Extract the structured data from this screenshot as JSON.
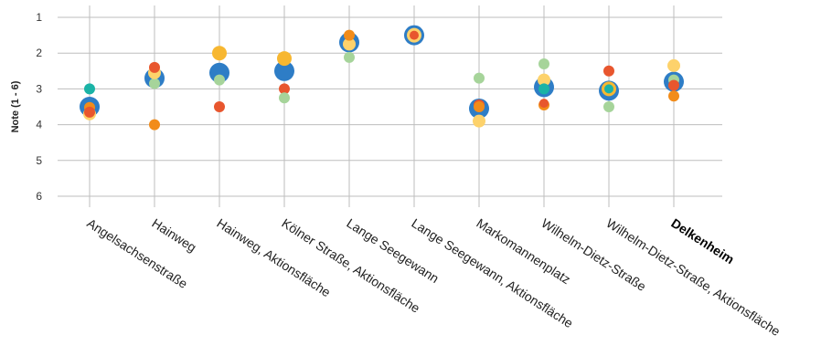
{
  "chart_data": {
    "type": "scatter",
    "ylabel": "Note (1 - 6)",
    "ylim": [
      1,
      6
    ],
    "yticks": [
      "1",
      "2",
      "3",
      "4",
      "5",
      "6"
    ],
    "y_inverted": true,
    "grid": true,
    "categories": [
      "Angelsachsenstraße",
      "Hainweg",
      "Hainweg, Aktionsfläche",
      "Kölner Straße, Aktionsfläche",
      "Lange Seegewann",
      "Lange Seegewann, Aktionsfläche",
      "Markomannenplatz",
      "Wilhelm-Dietz-Straße",
      "Wilhelm-Dietz-Straße, Aktionsfläche",
      "Delkenheim"
    ],
    "highlighted_category": "Delkenheim",
    "colors": {
      "blue": "#2e7dc6",
      "teal": "#1ab3a6",
      "lightgreen": "#a6d49a",
      "yellow": "#fdd26b",
      "gold": "#f7b731",
      "orange": "#f28c1a",
      "red": "#e8562e"
    },
    "points": [
      {
        "category": 0,
        "y": 3.5,
        "color": "blue",
        "size": 11
      },
      {
        "category": 0,
        "y": 3.0,
        "color": "teal",
        "size": 6
      },
      {
        "category": 0,
        "y": 3.7,
        "color": "yellow",
        "size": 7
      },
      {
        "category": 0,
        "y": 3.52,
        "color": "orange",
        "size": 6
      },
      {
        "category": 0,
        "y": 3.65,
        "color": "red",
        "size": 6
      },
      {
        "category": 1,
        "y": 2.7,
        "color": "blue",
        "size": 11
      },
      {
        "category": 1,
        "y": 2.85,
        "color": "lightgreen",
        "size": 6
      },
      {
        "category": 1,
        "y": 2.55,
        "color": "yellow",
        "size": 7
      },
      {
        "category": 1,
        "y": 2.4,
        "color": "red",
        "size": 6
      },
      {
        "category": 1,
        "y": 4.0,
        "color": "orange",
        "size": 6
      },
      {
        "category": 2,
        "y": 2.55,
        "color": "blue",
        "size": 11
      },
      {
        "category": 2,
        "y": 2.0,
        "color": "gold",
        "size": 8
      },
      {
        "category": 2,
        "y": 2.75,
        "color": "lightgreen",
        "size": 6
      },
      {
        "category": 2,
        "y": 3.5,
        "color": "red",
        "size": 6
      },
      {
        "category": 3,
        "y": 2.5,
        "color": "blue",
        "size": 11
      },
      {
        "category": 3,
        "y": 2.15,
        "color": "gold",
        "size": 8
      },
      {
        "category": 3,
        "y": 3.0,
        "color": "red",
        "size": 6
      },
      {
        "category": 3,
        "y": 3.25,
        "color": "lightgreen",
        "size": 6
      },
      {
        "category": 4,
        "y": 1.7,
        "color": "blue",
        "size": 11
      },
      {
        "category": 4,
        "y": 1.75,
        "color": "yellow",
        "size": 7
      },
      {
        "category": 4,
        "y": 1.5,
        "color": "orange",
        "size": 6
      },
      {
        "category": 4,
        "y": 2.12,
        "color": "lightgreen",
        "size": 6
      },
      {
        "category": 5,
        "y": 1.5,
        "color": "blue",
        "size": 11
      },
      {
        "category": 5,
        "y": 1.5,
        "color": "yellow",
        "size": 8
      },
      {
        "category": 5,
        "y": 1.5,
        "color": "red",
        "size": 5
      },
      {
        "category": 6,
        "y": 3.55,
        "color": "blue",
        "size": 11
      },
      {
        "category": 6,
        "y": 2.7,
        "color": "lightgreen",
        "size": 6
      },
      {
        "category": 6,
        "y": 3.9,
        "color": "yellow",
        "size": 7
      },
      {
        "category": 6,
        "y": 3.45,
        "color": "red",
        "size": 6
      },
      {
        "category": 6,
        "y": 3.5,
        "color": "orange",
        "size": 6
      },
      {
        "category": 7,
        "y": 2.95,
        "color": "blue",
        "size": 11
      },
      {
        "category": 7,
        "y": 2.3,
        "color": "lightgreen",
        "size": 6
      },
      {
        "category": 7,
        "y": 2.75,
        "color": "yellow",
        "size": 7
      },
      {
        "category": 7,
        "y": 3.0,
        "color": "teal",
        "size": 6
      },
      {
        "category": 7,
        "y": 3.45,
        "color": "orange",
        "size": 6
      },
      {
        "category": 7,
        "y": 3.4,
        "color": "red",
        "size": 5
      },
      {
        "category": 8,
        "y": 3.05,
        "color": "blue",
        "size": 11
      },
      {
        "category": 8,
        "y": 3.0,
        "color": "gold",
        "size": 8
      },
      {
        "category": 8,
        "y": 3.0,
        "color": "teal",
        "size": 5
      },
      {
        "category": 8,
        "y": 2.5,
        "color": "red",
        "size": 6
      },
      {
        "category": 8,
        "y": 3.5,
        "color": "lightgreen",
        "size": 6
      },
      {
        "category": 9,
        "y": 2.8,
        "color": "blue",
        "size": 11
      },
      {
        "category": 9,
        "y": 2.35,
        "color": "yellow",
        "size": 7
      },
      {
        "category": 9,
        "y": 2.75,
        "color": "lightgreen",
        "size": 6
      },
      {
        "category": 9,
        "y": 2.9,
        "color": "red",
        "size": 6
      },
      {
        "category": 9,
        "y": 3.2,
        "color": "orange",
        "size": 6
      }
    ]
  }
}
